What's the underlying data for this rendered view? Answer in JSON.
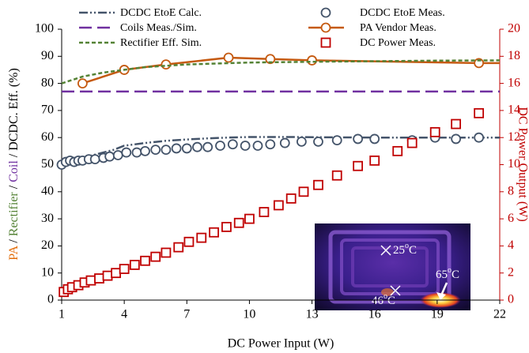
{
  "chart_data": {
    "type": "line",
    "x_label": "DC Power Input (W)",
    "y_label_parts": [
      {
        "text": "PA",
        "color": "#e36c09"
      },
      {
        "text": " / ",
        "color": "#000000"
      },
      {
        "text": "Rectifier",
        "color": "#548235"
      },
      {
        "text": " / ",
        "color": "#000000"
      },
      {
        "text": "Coil",
        "color": "#7030a0"
      },
      {
        "text": " / DCDC. Eff. (%)",
        "color": "#000000"
      }
    ],
    "y2_label": "DC Power Output (W)",
    "y2_color": "#c00000",
    "xlim": [
      1,
      22
    ],
    "xticks": [
      1,
      4,
      7,
      10,
      13,
      16,
      19,
      22
    ],
    "ylim": [
      0,
      100
    ],
    "yticks": [
      0,
      10,
      20,
      30,
      40,
      50,
      60,
      70,
      80,
      90,
      100
    ],
    "y2lim": [
      0,
      20
    ],
    "y2ticks": [
      0,
      2,
      4,
      6,
      8,
      10,
      12,
      14,
      16,
      18,
      20
    ],
    "grid": false,
    "legend": "top",
    "series": [
      {
        "name": "DCDC EtoE Calc.",
        "color": "#44546a",
        "style": "dash-dot-dot",
        "marker": "none",
        "x": [
          1,
          1.5,
          2,
          2.5,
          3,
          3.5,
          4,
          5,
          6,
          7,
          8,
          9,
          10,
          12,
          14,
          16,
          18,
          20,
          22
        ],
        "values": [
          50,
          51.5,
          52.5,
          53.5,
          54.5,
          55.5,
          57,
          58,
          58.8,
          59.3,
          59.7,
          60,
          60.2,
          60.2,
          60.1,
          60,
          60,
          60,
          60
        ]
      },
      {
        "name": "DCDC EtoE Meas.",
        "color": "#44546a",
        "style": "none",
        "marker": "circle",
        "x": [
          1.0,
          1.2,
          1.4,
          1.6,
          1.8,
          2.0,
          2.3,
          2.6,
          3.0,
          3.3,
          3.7,
          4.1,
          4.6,
          5.0,
          5.5,
          6.0,
          6.5,
          7.0,
          7.5,
          8.0,
          8.6,
          9.2,
          9.8,
          10.4,
          11.0,
          11.7,
          12.5,
          13.3,
          14.2,
          15.2,
          16.0,
          17.8,
          18.9,
          19.9,
          21.0
        ],
        "values": [
          50,
          51,
          51.5,
          51,
          51.5,
          51.5,
          52,
          52,
          52.5,
          53,
          53.5,
          54.5,
          54.5,
          55,
          55.5,
          55.5,
          56,
          56,
          56.5,
          56.5,
          57,
          57.5,
          57,
          57,
          57.5,
          58,
          58.5,
          58.5,
          59,
          59.5,
          59.5,
          59,
          60,
          59.5,
          60
        ]
      },
      {
        "name": "Coils Meas./Sim.",
        "color": "#7030a0",
        "style": "dash",
        "marker": "none",
        "x": [
          1,
          22
        ],
        "values": [
          77,
          77
        ]
      },
      {
        "name": "PA Vendor Meas.",
        "color": "#c55a11",
        "style": "solid",
        "marker": "circle",
        "x": [
          2,
          4,
          6,
          9,
          11,
          13,
          21,
          22
        ],
        "values": [
          80,
          85,
          87,
          89.5,
          89,
          88.5,
          87.5,
          87.5
        ],
        "markers_at": [
          0,
          1,
          2,
          3,
          4,
          5,
          6
        ]
      },
      {
        "name": "Rectifier Eff. Sim.",
        "color": "#548235",
        "style": "dot-dash",
        "marker": "none",
        "x": [
          1,
          2,
          3,
          4,
          5,
          7,
          10,
          13,
          16,
          19,
          22
        ],
        "values": [
          80,
          82.5,
          84,
          85,
          86,
          87,
          87.7,
          88,
          88.2,
          88.4,
          88.5
        ]
      },
      {
        "name": "DC Power Meas.",
        "color": "#c00000",
        "style": "none",
        "marker": "square",
        "axis": "y2",
        "x": [
          1.1,
          1.3,
          1.5,
          1.8,
          2.1,
          2.4,
          2.8,
          3.2,
          3.6,
          4.0,
          4.5,
          5.0,
          5.5,
          6.0,
          6.6,
          7.1,
          7.7,
          8.3,
          8.9,
          9.5,
          10.0,
          10.7,
          11.4,
          12.0,
          12.6,
          13.3,
          14.2,
          15.2,
          16.0,
          17.1,
          17.8,
          18.9,
          19.9,
          21.0
        ],
        "values": [
          0.6,
          0.8,
          0.95,
          1.1,
          1.3,
          1.45,
          1.6,
          1.8,
          2.0,
          2.3,
          2.6,
          2.9,
          3.2,
          3.5,
          3.9,
          4.3,
          4.6,
          5.0,
          5.4,
          5.7,
          6.0,
          6.5,
          7.0,
          7.5,
          8.0,
          8.5,
          9.2,
          9.9,
          10.3,
          11.0,
          11.6,
          12.4,
          13.0,
          13.8
        ]
      }
    ],
    "annotations": [
      {
        "base": "25",
        "sup": "o",
        "unit": "C"
      },
      {
        "base": "65",
        "sup": "o",
        "unit": "C"
      },
      {
        "base": "46",
        "sup": "o",
        "unit": "C"
      }
    ]
  }
}
